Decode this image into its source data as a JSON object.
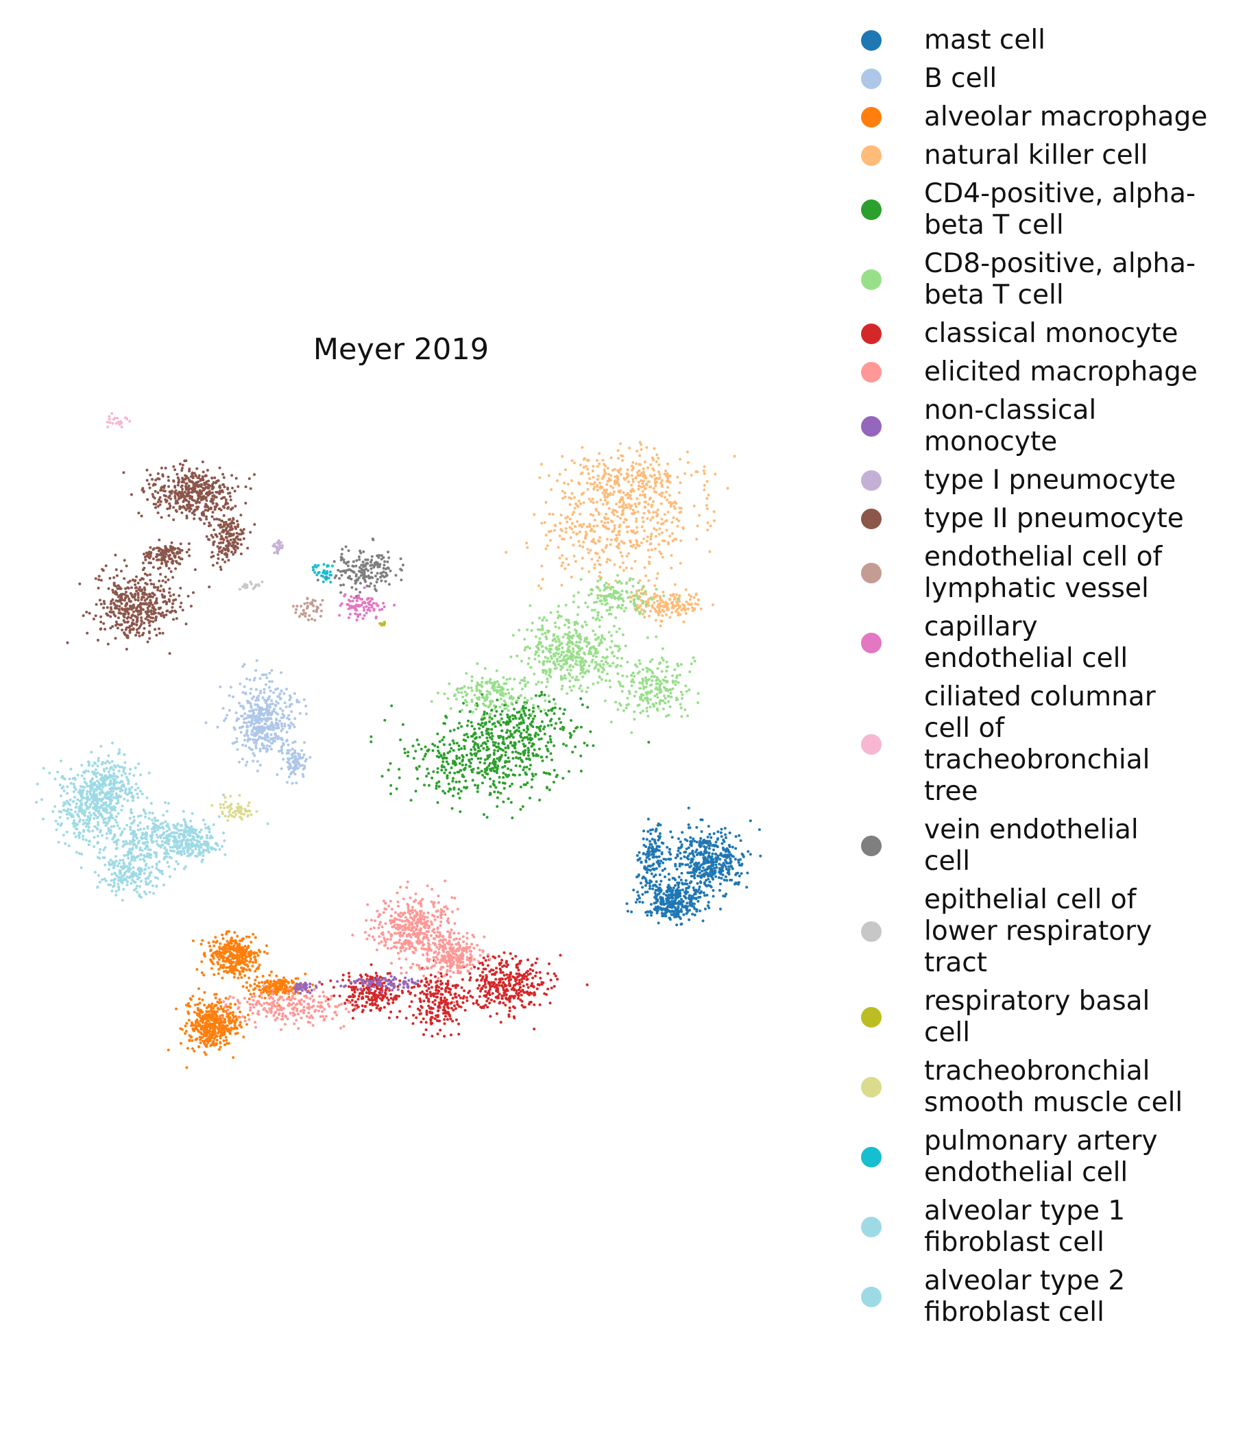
{
  "chart_data": {
    "type": "scatter",
    "title": "Meyer 2019",
    "xlabel": "",
    "ylabel": "",
    "axes_visible": false,
    "legend_placement": "right",
    "series": [
      {
        "name": "mast cell",
        "color": "#1f77b4"
      },
      {
        "name": "B cell",
        "color": "#aec7e8"
      },
      {
        "name": "alveolar macrophage",
        "color": "#ff7f0e"
      },
      {
        "name": "natural killer cell",
        "color": "#ffbb78"
      },
      {
        "name": "CD4-positive, alpha-\nbeta T cell",
        "color": "#2ca02c"
      },
      {
        "name": "CD8-positive, alpha-\nbeta T cell",
        "color": "#98df8a"
      },
      {
        "name": "classical monocyte",
        "color": "#d62728"
      },
      {
        "name": "elicited macrophage",
        "color": "#ff9896"
      },
      {
        "name": "non-classical\nmonocyte",
        "color": "#9467bd"
      },
      {
        "name": "type I pneumocyte",
        "color": "#c5b0d5"
      },
      {
        "name": "type II pneumocyte",
        "color": "#8c564b"
      },
      {
        "name": "endothelial cell of\nlymphatic vessel",
        "color": "#c49c94"
      },
      {
        "name": "capillary\nendothelial cell",
        "color": "#e377c2"
      },
      {
        "name": "ciliated columnar\ncell of\ntracheobronchial\ntree",
        "color": "#f7b6d2"
      },
      {
        "name": "vein endothelial\ncell",
        "color": "#7f7f7f"
      },
      {
        "name": "epithelial cell of\nlower respiratory\ntract",
        "color": "#c7c7c7"
      },
      {
        "name": "respiratory basal\ncell",
        "color": "#bcbd22"
      },
      {
        "name": "tracheobronchial\nsmooth muscle cell",
        "color": "#dbdb8d"
      },
      {
        "name": "pulmonary artery\nendothelial cell",
        "color": "#17becf"
      },
      {
        "name": "alveolar type 1\nfibroblast cell",
        "color": "#9edae5"
      },
      {
        "name": "alveolar type 2\nfibroblast cell",
        "color": "#9edae5"
      }
    ]
  }
}
